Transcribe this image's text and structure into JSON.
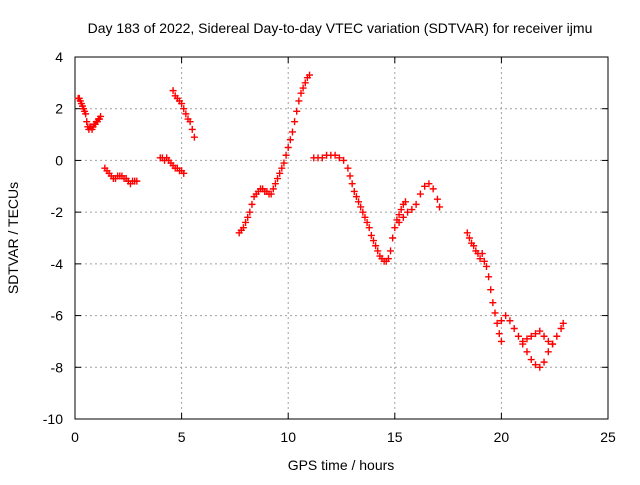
{
  "chart_data": {
    "type": "scatter",
    "title": "Day 183 of 2022, Sidereal Day-to-day VTEC variation (SDTVAR) for receiver ijmu",
    "xlabel": "GPS time / hours",
    "ylabel": "SDTVAR / TECUs",
    "xlim": [
      0,
      25
    ],
    "ylim": [
      -10,
      4
    ],
    "xticks": [
      0,
      5,
      10,
      15,
      20,
      25
    ],
    "yticks": [
      -10,
      -8,
      -6,
      -4,
      -2,
      0,
      2,
      4
    ],
    "xtick_labels": [
      "0",
      "5",
      "10",
      "15",
      "20",
      "25"
    ],
    "ytick_labels": [
      "-10",
      "-8",
      "-6",
      "-4",
      "-2",
      "0",
      "2",
      "4"
    ],
    "grid": true,
    "marker": "plus",
    "color": "#ff0000",
    "segments": [
      {
        "x": [
          0.15,
          0.2,
          0.25,
          0.3,
          0.35,
          0.4,
          0.45,
          0.5,
          0.55,
          0.6,
          0.65,
          0.7,
          0.75,
          0.8,
          0.85,
          0.9,
          0.95,
          1.0,
          1.05,
          1.1,
          1.15,
          1.2
        ],
        "y": [
          2.4,
          2.4,
          2.3,
          2.2,
          2.1,
          2.0,
          1.9,
          1.8,
          1.5,
          1.3,
          1.2,
          1.3,
          1.3,
          1.2,
          1.3,
          1.4,
          1.4,
          1.5,
          1.5,
          1.6,
          1.6,
          1.7
        ]
      },
      {
        "x": [
          1.4,
          1.5,
          1.6,
          1.7,
          1.8,
          1.9,
          2.0,
          2.1,
          2.2,
          2.3,
          2.4,
          2.5,
          2.6,
          2.7,
          2.8,
          2.9
        ],
        "y": [
          -0.3,
          -0.4,
          -0.5,
          -0.6,
          -0.7,
          -0.7,
          -0.6,
          -0.6,
          -0.6,
          -0.7,
          -0.7,
          -0.8,
          -0.9,
          -0.8,
          -0.8,
          -0.8
        ]
      },
      {
        "x": [
          4.0,
          4.1,
          4.2,
          4.3,
          4.4,
          4.5,
          4.6,
          4.7,
          4.8,
          4.9,
          5.0,
          5.1
        ],
        "y": [
          0.1,
          0.1,
          0.0,
          0.1,
          0.0,
          -0.1,
          -0.2,
          -0.3,
          -0.3,
          -0.4,
          -0.4,
          -0.5
        ]
      },
      {
        "x": [
          4.6,
          4.7,
          4.8,
          4.9,
          5.0,
          5.1,
          5.2,
          5.3,
          5.4,
          5.5,
          5.6
        ],
        "y": [
          2.7,
          2.5,
          2.4,
          2.3,
          2.2,
          2.0,
          1.8,
          1.6,
          1.5,
          1.2,
          0.9
        ]
      },
      {
        "x": [
          7.7,
          7.8,
          7.9,
          8.0,
          8.1,
          8.2,
          8.3,
          8.4,
          8.5,
          8.6,
          8.7,
          8.8,
          8.9,
          9.0,
          9.1,
          9.2,
          9.3,
          9.4,
          9.5,
          9.6,
          9.7,
          9.8,
          9.9,
          10.0,
          10.1,
          10.2,
          10.3,
          10.4,
          10.5,
          10.6,
          10.7,
          10.8,
          10.9,
          11.0
        ],
        "y": [
          -2.8,
          -2.7,
          -2.6,
          -2.4,
          -2.2,
          -2.0,
          -1.7,
          -1.4,
          -1.3,
          -1.2,
          -1.1,
          -1.1,
          -1.2,
          -1.2,
          -1.3,
          -1.3,
          -1.1,
          -0.9,
          -0.7,
          -0.5,
          -0.3,
          -0.1,
          0.2,
          0.5,
          0.8,
          1.1,
          1.5,
          1.9,
          2.3,
          2.6,
          2.8,
          3.0,
          3.2,
          3.3
        ]
      },
      {
        "x": [
          11.2,
          11.4,
          11.6,
          11.8,
          12.0,
          12.2,
          12.4,
          12.6,
          12.8,
          12.9,
          13.0,
          13.1,
          13.2,
          13.3,
          13.4,
          13.5,
          13.6,
          13.7,
          13.8,
          13.9,
          14.0,
          14.1,
          14.2,
          14.3,
          14.4,
          14.5,
          14.6,
          14.7,
          14.8,
          14.9,
          15.0,
          15.1,
          15.2,
          15.3,
          15.4,
          15.5
        ],
        "y": [
          0.1,
          0.1,
          0.1,
          0.2,
          0.2,
          0.2,
          0.1,
          0.0,
          -0.3,
          -0.6,
          -0.9,
          -1.2,
          -1.4,
          -1.6,
          -1.8,
          -2.0,
          -2.2,
          -2.4,
          -2.6,
          -2.9,
          -3.1,
          -3.3,
          -3.5,
          -3.7,
          -3.8,
          -3.9,
          -3.9,
          -3.8,
          -3.5,
          -3.0,
          -2.6,
          -2.3,
          -2.1,
          -1.9,
          -1.7,
          -1.6
        ]
      },
      {
        "x": [
          15.2,
          15.4,
          15.6,
          15.8,
          16.0,
          16.2,
          16.4,
          16.6,
          16.8,
          17.0,
          17.1
        ],
        "y": [
          -2.4,
          -2.2,
          -2.0,
          -1.9,
          -1.7,
          -1.3,
          -1.0,
          -0.9,
          -1.1,
          -1.5,
          -1.8
        ]
      },
      {
        "x": [
          18.4,
          18.5,
          18.6,
          18.7,
          18.8,
          18.9,
          19.0,
          19.1,
          19.2,
          19.3,
          19.4,
          19.5,
          19.6,
          19.7,
          19.8,
          19.9,
          20.0
        ],
        "y": [
          -2.8,
          -3.0,
          -3.2,
          -3.3,
          -3.5,
          -3.6,
          -3.8,
          -3.6,
          -3.9,
          -4.1,
          -4.5,
          -5.0,
          -5.5,
          -5.9,
          -6.3,
          -6.7,
          -7.0
        ]
      },
      {
        "x": [
          20.0,
          20.2,
          20.4,
          20.6,
          20.8,
          21.0,
          21.2,
          21.4,
          21.6,
          21.8,
          22.0,
          22.2,
          22.4,
          22.6,
          22.8,
          22.9
        ],
        "y": [
          -6.2,
          -6.0,
          -6.2,
          -6.5,
          -6.8,
          -7.1,
          -7.4,
          -7.7,
          -7.9,
          -8.0,
          -7.8,
          -7.4,
          -7.1,
          -6.8,
          -6.5,
          -6.3
        ]
      },
      {
        "x": [
          21.0,
          21.2,
          21.4,
          21.6,
          21.8,
          22.0,
          22.2,
          22.4
        ],
        "y": [
          -7.0,
          -6.9,
          -6.8,
          -6.7,
          -6.6,
          -6.8,
          -7.0,
          -7.1
        ]
      }
    ]
  }
}
